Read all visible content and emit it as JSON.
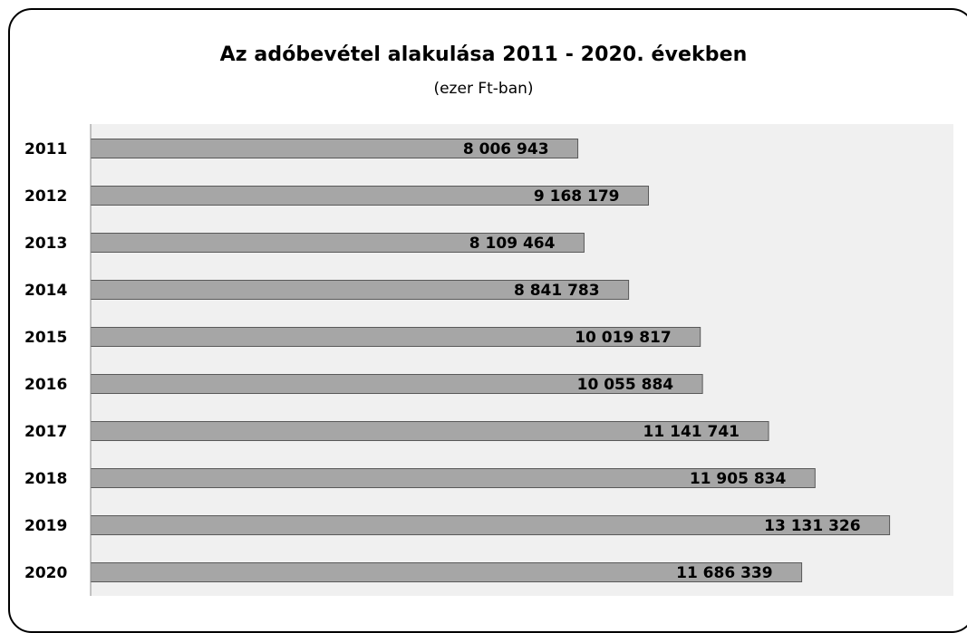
{
  "chart_data": {
    "type": "bar",
    "orientation": "horizontal",
    "title": "Az adóbevétel alakulása 2011 - 2020. években",
    "subtitle": "(ezer Ft-ban)",
    "categories": [
      "2011",
      "2012",
      "2013",
      "2014",
      "2015",
      "2016",
      "2017",
      "2018",
      "2019",
      "2020"
    ],
    "values": [
      8006943,
      9168179,
      8109464,
      8841783,
      10019817,
      10055884,
      11141741,
      11905834,
      13131326,
      11686339
    ],
    "value_labels": [
      "8 006 943",
      "9 168 179",
      "8 109 464",
      "8 841 783",
      "10 019 817",
      "10 055 884",
      "11 141 741",
      "11 905 834",
      "13 131 326",
      "11 686 339"
    ],
    "xlim": [
      0,
      14180000
    ],
    "grid": false,
    "legend": "none",
    "colors": {
      "bar_fill": "#a6a6a6",
      "bar_stroke": "#595959",
      "plot_background": "#f0f0f0",
      "axis": "#8c8c8c"
    }
  }
}
